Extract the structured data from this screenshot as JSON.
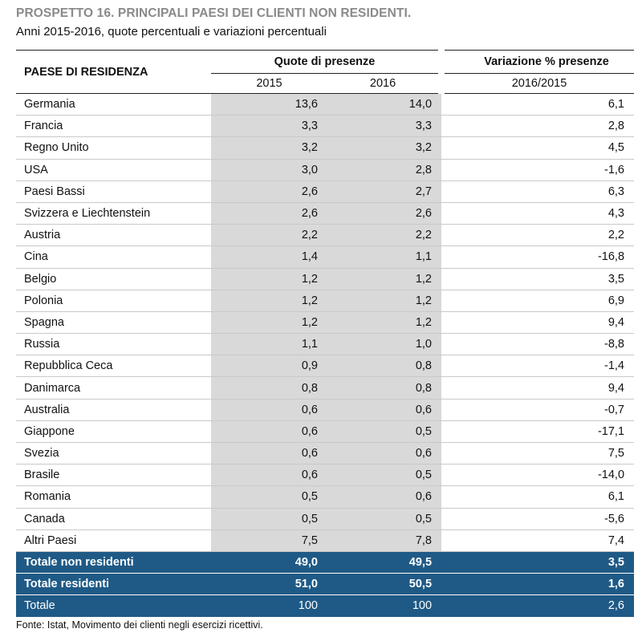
{
  "title": "PROSPETTO 16. PRINCIPALI PAESI DEI CLIENTI NON RESIDENTI.",
  "subtitle": "Anni 2015-2016, quote percentuali e variazioni percentuali",
  "header": {
    "paese": "PAESE DI RESIDENZA",
    "quote": "Quote di presenze",
    "variazione": "Variazione % presenze",
    "y2015": "2015",
    "y2016": "2016",
    "var_period": "2016/2015"
  },
  "rows": [
    {
      "paese": "Germania",
      "y2015": "13,6",
      "y2016": "14,0",
      "var": "6,1"
    },
    {
      "paese": "Francia",
      "y2015": "3,3",
      "y2016": "3,3",
      "var": "2,8"
    },
    {
      "paese": "Regno Unito",
      "y2015": "3,2",
      "y2016": "3,2",
      "var": "4,5"
    },
    {
      "paese": "USA",
      "y2015": "3,0",
      "y2016": "2,8",
      "var": "-1,6"
    },
    {
      "paese": "Paesi Bassi",
      "y2015": "2,6",
      "y2016": "2,7",
      "var": "6,3"
    },
    {
      "paese": "Svizzera e Liechtenstein",
      "y2015": "2,6",
      "y2016": "2,6",
      "var": "4,3"
    },
    {
      "paese": "Austria",
      "y2015": "2,2",
      "y2016": "2,2",
      "var": "2,2"
    },
    {
      "paese": "Cina",
      "y2015": "1,4",
      "y2016": "1,1",
      "var": "-16,8"
    },
    {
      "paese": "Belgio",
      "y2015": "1,2",
      "y2016": "1,2",
      "var": "3,5"
    },
    {
      "paese": "Polonia",
      "y2015": "1,2",
      "y2016": "1,2",
      "var": "6,9"
    },
    {
      "paese": "Spagna",
      "y2015": "1,2",
      "y2016": "1,2",
      "var": "9,4"
    },
    {
      "paese": "Russia",
      "y2015": "1,1",
      "y2016": "1,0",
      "var": "-8,8"
    },
    {
      "paese": "Repubblica Ceca",
      "y2015": "0,9",
      "y2016": "0,8",
      "var": "-1,4"
    },
    {
      "paese": "Danimarca",
      "y2015": "0,8",
      "y2016": "0,8",
      "var": "9,4"
    },
    {
      "paese": "Australia",
      "y2015": "0,6",
      "y2016": "0,6",
      "var": "-0,7"
    },
    {
      "paese": "Giappone",
      "y2015": "0,6",
      "y2016": "0,5",
      "var": "-17,1"
    },
    {
      "paese": "Svezia",
      "y2015": "0,6",
      "y2016": "0,6",
      "var": "7,5"
    },
    {
      "paese": "Brasile",
      "y2015": "0,6",
      "y2016": "0,5",
      "var": "-14,0"
    },
    {
      "paese": "Romania",
      "y2015": "0,5",
      "y2016": "0,6",
      "var": "6,1"
    },
    {
      "paese": "Canada",
      "y2015": "0,5",
      "y2016": "0,5",
      "var": "-5,6"
    },
    {
      "paese": "Altri Paesi",
      "y2015": "7,5",
      "y2016": "7,8",
      "var": "7,4"
    }
  ],
  "totals": [
    {
      "paese": "Totale non residenti",
      "y2015": "49,0",
      "y2016": "49,5",
      "var": "3,5",
      "kind": "tot-nr"
    },
    {
      "paese": "Totale residenti",
      "y2015": "51,0",
      "y2016": "50,5",
      "var": "1,6",
      "kind": "tot-r"
    },
    {
      "paese": "Totale",
      "y2015": "100",
      "y2016": "100",
      "var": "2,6",
      "kind": "tot"
    }
  ],
  "fonte": "Fonte: Istat, Movimento dei clienti negli esercizi ricettivi.",
  "colors": {
    "title_gray": "#8a8a8a",
    "shade": "#d9d9d9",
    "total_blue": "#1f5a86"
  }
}
